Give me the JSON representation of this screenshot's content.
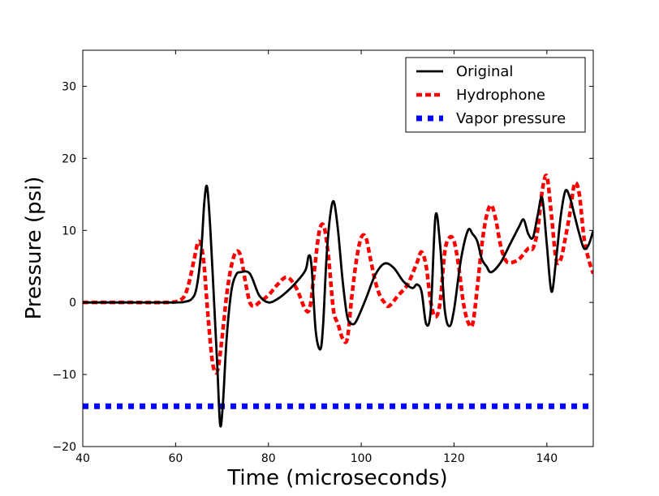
{
  "chart_data": {
    "type": "line",
    "title": "",
    "xlabel": "Time (microseconds)",
    "ylabel": "Pressure (psi)",
    "xlim": [
      40,
      150
    ],
    "ylim": [
      -20,
      35
    ],
    "xticks": [
      40,
      60,
      80,
      100,
      120,
      140
    ],
    "yticks": [
      -20,
      -10,
      0,
      10,
      20,
      30
    ],
    "xtick_labels": [
      "40",
      "60",
      "80",
      "100",
      "120",
      "140"
    ],
    "ytick_labels": [
      "−20",
      "−10",
      "0",
      "10",
      "20",
      "30"
    ],
    "legend_position": "top-right",
    "series": [
      {
        "name": "Original",
        "color": "#000000",
        "style": "solid",
        "x": [
          40,
          50,
          60,
          62,
          63.5,
          64.5,
          65.5,
          66.2,
          66.8,
          67.5,
          68.3,
          69,
          69.6,
          70.2,
          71,
          72,
          73,
          74,
          76,
          78,
          80,
          82,
          84,
          86,
          88,
          88.7,
          89.3,
          90.2,
          91.2,
          91.8,
          92.5,
          93.3,
          94.1,
          95,
          96,
          97,
          98,
          99,
          101,
          103,
          105,
          107,
          109,
          111,
          112,
          113,
          114,
          115,
          116,
          117,
          118,
          119,
          120,
          121.5,
          123,
          124,
          125,
          126,
          127,
          128,
          130,
          132,
          134,
          135,
          136,
          137,
          138,
          139,
          140,
          141,
          142,
          143,
          144,
          145,
          146,
          147,
          148,
          149,
          150
        ],
        "y": [
          0,
          0,
          0,
          0.1,
          0.5,
          2,
          7,
          14,
          16,
          10,
          0,
          -9,
          -17,
          -14,
          -5,
          1.5,
          3.8,
          4.2,
          4,
          1,
          0,
          0.5,
          1.5,
          2.8,
          4.5,
          6.5,
          5,
          -4,
          -6.5,
          -3,
          6,
          12,
          14,
          10,
          3,
          -2,
          -3,
          -2.5,
          0.5,
          3.8,
          5.4,
          4.8,
          3,
          2,
          2.5,
          1.5,
          -3,
          -1,
          12,
          8,
          -1,
          -3.3,
          -1,
          6,
          10,
          9.5,
          8.5,
          6,
          5,
          4.2,
          5.5,
          8,
          10.5,
          11.5,
          9.5,
          9,
          12,
          14.5,
          8,
          1.5,
          6,
          12,
          15.5,
          14.5,
          12,
          9.5,
          7.5,
          8,
          10
        ]
      },
      {
        "name": "Hydrophone",
        "color": "#ff0000",
        "style": "dashed",
        "x": [
          40,
          50,
          58,
          60,
          61,
          62,
          63,
          64,
          65,
          66,
          67,
          68,
          69,
          70,
          71,
          72,
          73,
          74,
          75,
          76,
          77,
          78,
          80,
          82,
          84,
          86,
          88,
          89,
          90,
          91,
          92,
          93,
          94,
          95,
          96,
          97,
          98,
          99,
          100,
          101,
          102,
          103,
          104,
          105,
          106,
          108,
          110,
          112,
          113,
          114,
          115,
          116,
          117,
          118,
          119,
          120,
          121,
          122,
          123,
          124,
          125,
          126,
          127,
          128,
          129,
          130,
          131,
          132,
          134,
          136,
          137,
          138,
          139,
          140,
          141,
          142,
          143,
          144,
          145,
          146,
          147,
          148,
          149,
          150
        ],
        "y": [
          0,
          0,
          0,
          0.1,
          0.3,
          1,
          3,
          6,
          8.5,
          6,
          -2,
          -8.5,
          -9.5,
          -5,
          1,
          5,
          7,
          6.5,
          3,
          0,
          -0.5,
          0,
          1,
          2.5,
          3.5,
          2,
          -1,
          -0.5,
          5,
          10,
          10.5,
          6,
          -1,
          -3,
          -5,
          -5,
          1,
          6,
          9,
          9,
          6,
          3,
          1,
          0,
          -0.5,
          1,
          2.5,
          5.5,
          7,
          5,
          0,
          -2,
          0,
          7,
          9,
          8.5,
          5,
          0,
          -2.7,
          -3,
          2,
          8,
          12,
          13.5,
          11.5,
          8,
          6,
          5.5,
          6,
          7.5,
          7.5,
          10,
          15.5,
          17.5,
          12,
          6,
          6,
          9,
          12.5,
          16.5,
          15,
          9,
          6,
          4
        ]
      },
      {
        "name": "Vapor pressure",
        "color": "#0000ff",
        "style": "dotted",
        "x": [
          40,
          150
        ],
        "y": [
          -14.4,
          -14.4
        ]
      }
    ]
  }
}
